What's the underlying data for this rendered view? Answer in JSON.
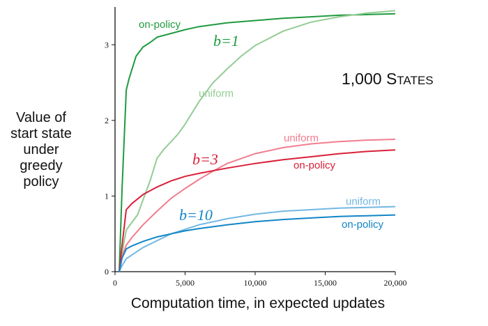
{
  "chart_data": {
    "type": "line",
    "title": "",
    "xlabel": "Computation time, in expected updates",
    "ylabel_lines": [
      "Value of",
      "start state",
      "under",
      "greedy",
      "policy"
    ],
    "xlim": [
      0,
      20000
    ],
    "ylim": [
      0,
      3.5
    ],
    "xticks": [
      0,
      5000,
      10000,
      15000,
      20000
    ],
    "xtick_labels": [
      "0",
      "5,000",
      "10,000",
      "15,000",
      "20,000"
    ],
    "yticks": [
      0,
      1,
      2,
      3
    ],
    "ytick_labels": [
      "0",
      "1",
      "2",
      "3"
    ],
    "annotation": {
      "prefix": "1,000 S",
      "smallcaps": "TATES"
    },
    "branch_labels": [
      "b=1",
      "b=3",
      "b=10"
    ],
    "series": [
      {
        "name": "on-policy",
        "branching": "b=1",
        "color": "#1f9a3f",
        "x": [
          300,
          500,
          800,
          1000,
          1500,
          2000,
          2500,
          3000,
          4000,
          5000,
          6000,
          8000,
          10000,
          12000,
          14000,
          16000,
          18000,
          20000
        ],
        "y": [
          0,
          1.1,
          2.4,
          2.55,
          2.85,
          2.97,
          3.03,
          3.1,
          3.15,
          3.2,
          3.24,
          3.29,
          3.32,
          3.35,
          3.37,
          3.39,
          3.4,
          3.41
        ]
      },
      {
        "name": "uniform",
        "branching": "b=1",
        "color": "#93cc94",
        "x": [
          300,
          500,
          800,
          1200,
          1600,
          2000,
          2500,
          3000,
          3500,
          4000,
          4500,
          5000,
          6000,
          7000,
          8000,
          9000,
          10000,
          12000,
          14000,
          16000,
          18000,
          20000
        ],
        "y": [
          0,
          0.25,
          0.55,
          0.65,
          0.75,
          0.95,
          1.2,
          1.5,
          1.62,
          1.72,
          1.82,
          1.95,
          2.25,
          2.5,
          2.68,
          2.85,
          2.99,
          3.18,
          3.3,
          3.37,
          3.42,
          3.45
        ]
      },
      {
        "name": "uniform",
        "branching": "b=3",
        "color": "#f07d8e",
        "x": [
          300,
          500,
          800,
          1200,
          2000,
          3000,
          4000,
          5000,
          6000,
          7000,
          8000,
          10000,
          12000,
          14000,
          16000,
          18000,
          20000
        ],
        "y": [
          0,
          0.2,
          0.35,
          0.45,
          0.62,
          0.8,
          0.97,
          1.1,
          1.22,
          1.33,
          1.43,
          1.56,
          1.64,
          1.69,
          1.72,
          1.74,
          1.75
        ]
      },
      {
        "name": "on-policy",
        "branching": "b=3",
        "color": "#d92039",
        "x": [
          300,
          500,
          800,
          1200,
          2000,
          3000,
          4000,
          5000,
          6000,
          8000,
          10000,
          12000,
          14000,
          16000,
          18000,
          20000
        ],
        "y": [
          0,
          0.35,
          0.82,
          0.9,
          1.02,
          1.12,
          1.2,
          1.26,
          1.3,
          1.37,
          1.43,
          1.48,
          1.52,
          1.56,
          1.59,
          1.61
        ]
      },
      {
        "name": "uniform",
        "branching": "b=10",
        "color": "#73b7e3",
        "x": [
          300,
          500,
          800,
          1200,
          2000,
          3000,
          4000,
          5000,
          6000,
          8000,
          10000,
          12000,
          14000,
          16000,
          18000,
          20000
        ],
        "y": [
          0,
          0.08,
          0.17,
          0.22,
          0.32,
          0.41,
          0.5,
          0.56,
          0.62,
          0.7,
          0.76,
          0.8,
          0.82,
          0.84,
          0.85,
          0.86
        ]
      },
      {
        "name": "on-policy",
        "branching": "b=10",
        "color": "#1185c6",
        "x": [
          300,
          500,
          800,
          1200,
          2000,
          3000,
          4000,
          5000,
          6000,
          8000,
          10000,
          12000,
          14000,
          16000,
          18000,
          20000
        ],
        "y": [
          0,
          0.18,
          0.3,
          0.34,
          0.4,
          0.46,
          0.5,
          0.54,
          0.57,
          0.62,
          0.66,
          0.69,
          0.71,
          0.73,
          0.74,
          0.75
        ]
      }
    ]
  }
}
